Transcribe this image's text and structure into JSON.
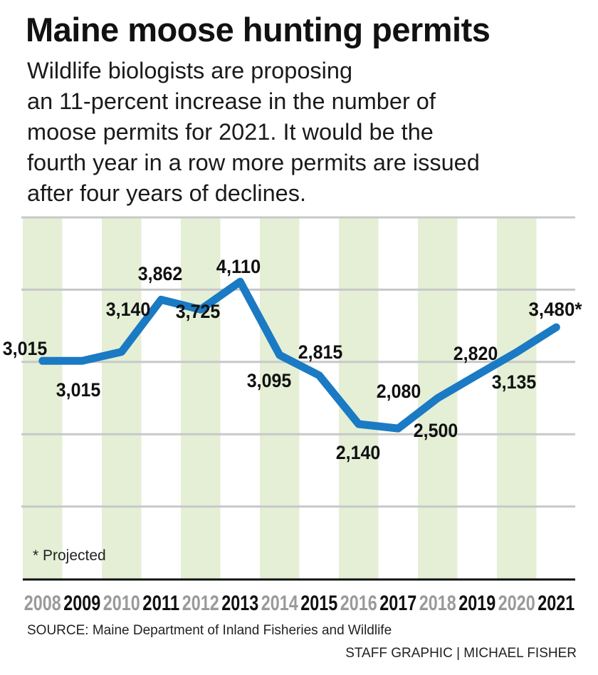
{
  "header": {
    "title": "Maine moose hunting permits",
    "subtitle_lines": [
      "Wildlife biologists are proposing",
      "an 11-percent increase in the number of",
      "moose permits for 2021. It would be the",
      "fourth year in a row more permits are issued",
      "after four years of declines."
    ]
  },
  "chart_data": {
    "type": "line",
    "title": "Maine moose hunting permits",
    "x": [
      "2008",
      "2009",
      "2010",
      "2011",
      "2012",
      "2013",
      "2014",
      "2015",
      "2016",
      "2017",
      "2018",
      "2019",
      "2020",
      "2021"
    ],
    "values": [
      3015,
      3015,
      3140,
      3862,
      3725,
      4110,
      3095,
      2815,
      2140,
      2080,
      2500,
      2820,
      3135,
      3480
    ],
    "data_labels": [
      "3,015",
      "3,015",
      "3,140",
      "3,862",
      "3,725",
      "4,110",
      "3,095",
      "2,815",
      "2,140",
      "2,080",
      "2,500",
      "2,820",
      "3,135",
      "3,480*"
    ],
    "ylim": [
      0,
      5000
    ],
    "gridlines": [
      1000,
      2000,
      3000,
      4000,
      5000
    ],
    "grid": true,
    "xlabel": "",
    "ylabel": "",
    "annotation": "* Projected",
    "colors": {
      "line": "#1a7ac4",
      "stripe": "#e4efd6",
      "grid": "#c8c8c8",
      "year_even": "#9a9a9a",
      "year_odd": "#111111"
    }
  },
  "footer": {
    "source": "SOURCE: Maine Department of Inland Fisheries and Wildlife",
    "credit": "STAFF GRAPHIC | MICHAEL FISHER"
  }
}
